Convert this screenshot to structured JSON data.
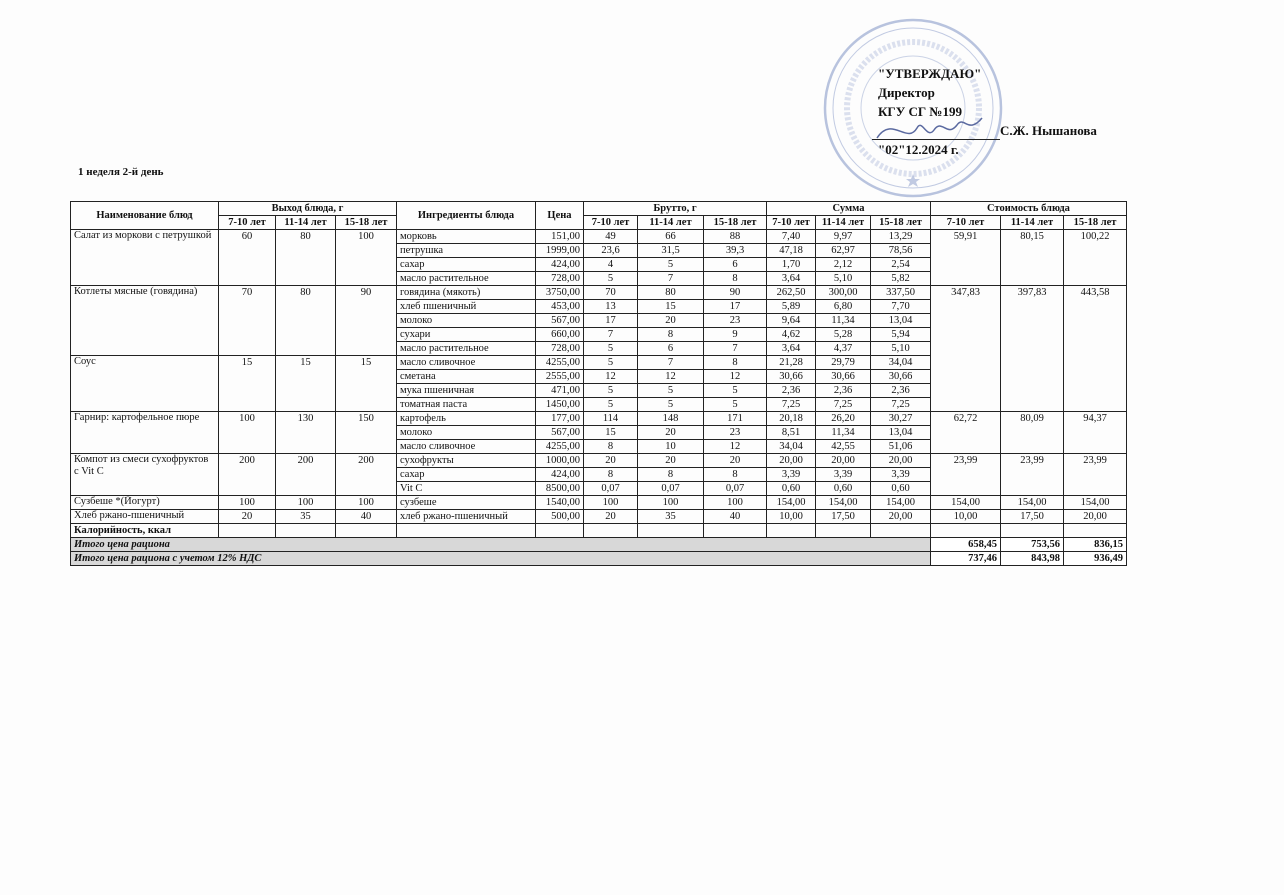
{
  "approval": {
    "title": "\"УТВЕРЖДАЮ\"",
    "position": "Директор",
    "org": "КГУ СГ №199",
    "name": "С.Ж. Нышанова",
    "date": "\"02\"12.2024 г."
  },
  "stamp": {
    "text": "АЛМАТЫ ҚАЛАСЫ БІЛІМ БАСҚАРМАСЫНЫҢ ШАРУАШЫЛЫҚ ЖҮРГІЗУ ҚҰҚЫҒЫНДАҒЫ №199 ГИМНАЗИЯ КОММУНАЛДЫҚ МЕМЛЕКЕТТІК МЕКЕМЕСІ",
    "color": "#8a9cc8"
  },
  "day_title": "1 неделя 2-й день",
  "headers": {
    "dish": "Наименование блюд",
    "yield": "Выход блюда, г",
    "ingredients": "Ингредиенты блюда",
    "price": "Цена",
    "brutto": "Брутто, г",
    "sum": "Сумма",
    "cost": "Стоимость блюда",
    "ages": [
      "7-10 лет",
      "11-14 лет",
      "15-18 лет"
    ]
  },
  "dishes": [
    {
      "name": "Салат из моркови с петрушкой",
      "yield": [
        "60",
        "80",
        "100"
      ],
      "cost": [
        "59,91",
        "80,15",
        "100,22"
      ],
      "ingredients": [
        {
          "name": "морковь",
          "price": "151,00",
          "brutto": [
            "49",
            "66",
            "88"
          ],
          "sum": [
            "7,40",
            "9,97",
            "13,29"
          ]
        },
        {
          "name": "петрушка",
          "price": "1999,00",
          "brutto": [
            "23,6",
            "31,5",
            "39,3"
          ],
          "sum": [
            "47,18",
            "62,97",
            "78,56"
          ]
        },
        {
          "name": "сахар",
          "price": "424,00",
          "brutto": [
            "4",
            "5",
            "6"
          ],
          "sum": [
            "1,70",
            "2,12",
            "2,54"
          ]
        },
        {
          "name": "масло растительное",
          "price": "728,00",
          "brutto": [
            "5",
            "7",
            "8"
          ],
          "sum": [
            "3,64",
            "5,10",
            "5,82"
          ]
        }
      ]
    },
    {
      "name": "Котлеты мясные (говядина)",
      "yield": [
        "70",
        "80",
        "90"
      ],
      "cost": [
        "347,83",
        "397,83",
        "443,58"
      ],
      "cost_rows": 9,
      "ingredients": [
        {
          "name": "говядина (мякоть)",
          "price": "3750,00",
          "brutto": [
            "70",
            "80",
            "90"
          ],
          "sum": [
            "262,50",
            "300,00",
            "337,50"
          ]
        },
        {
          "name": "хлеб пшеничный",
          "price": "453,00",
          "brutto": [
            "13",
            "15",
            "17"
          ],
          "sum": [
            "5,89",
            "6,80",
            "7,70"
          ]
        },
        {
          "name": "молоко",
          "price": "567,00",
          "brutto": [
            "17",
            "20",
            "23"
          ],
          "sum": [
            "9,64",
            "11,34",
            "13,04"
          ]
        },
        {
          "name": "сухари",
          "price": "660,00",
          "brutto": [
            "7",
            "8",
            "9"
          ],
          "sum": [
            "4,62",
            "5,28",
            "5,94"
          ]
        },
        {
          "name": "масло растительное",
          "price": "728,00",
          "brutto": [
            "5",
            "6",
            "7"
          ],
          "sum": [
            "3,64",
            "4,37",
            "5,10"
          ]
        }
      ]
    },
    {
      "name": "Соус",
      "yield": [
        "15",
        "15",
        "15"
      ],
      "cost": null,
      "ingredients": [
        {
          "name": "масло сливочное",
          "price": "4255,00",
          "brutto": [
            "5",
            "7",
            "8"
          ],
          "sum": [
            "21,28",
            "29,79",
            "34,04"
          ]
        },
        {
          "name": "сметана",
          "price": "2555,00",
          "brutto": [
            "12",
            "12",
            "12"
          ],
          "sum": [
            "30,66",
            "30,66",
            "30,66"
          ]
        },
        {
          "name": "мука пшеничная",
          "price": "471,00",
          "brutto": [
            "5",
            "5",
            "5"
          ],
          "sum": [
            "2,36",
            "2,36",
            "2,36"
          ]
        },
        {
          "name": "томатная паста",
          "price": "1450,00",
          "brutto": [
            "5",
            "5",
            "5"
          ],
          "sum": [
            "7,25",
            "7,25",
            "7,25"
          ]
        }
      ]
    },
    {
      "name": "Гарнир:  картофельное пюре",
      "yield": [
        "100",
        "130",
        "150"
      ],
      "cost": [
        "62,72",
        "80,09",
        "94,37"
      ],
      "ingredients": [
        {
          "name": "картофель",
          "price": "177,00",
          "brutto": [
            "114",
            "148",
            "171"
          ],
          "sum": [
            "20,18",
            "26,20",
            "30,27"
          ]
        },
        {
          "name": "молоко",
          "price": "567,00",
          "brutto": [
            "15",
            "20",
            "23"
          ],
          "sum": [
            "8,51",
            "11,34",
            "13,04"
          ]
        },
        {
          "name": "масло сливочное",
          "price": "4255,00",
          "brutto": [
            "8",
            "10",
            "12"
          ],
          "sum": [
            "34,04",
            "42,55",
            "51,06"
          ]
        }
      ]
    },
    {
      "name": "Компот из смеси сухофруктов с Vit C",
      "yield": [
        "200",
        "200",
        "200"
      ],
      "cost": [
        "23,99",
        "23,99",
        "23,99"
      ],
      "ingredients": [
        {
          "name": "сухофрукты",
          "price": "1000,00",
          "brutto": [
            "20",
            "20",
            "20"
          ],
          "sum": [
            "20,00",
            "20,00",
            "20,00"
          ]
        },
        {
          "name": "сахар",
          "price": "424,00",
          "brutto": [
            "8",
            "8",
            "8"
          ],
          "sum": [
            "3,39",
            "3,39",
            "3,39"
          ]
        },
        {
          "name": "Vit C",
          "price": "8500,00",
          "brutto": [
            "0,07",
            "0,07",
            "0,07"
          ],
          "sum": [
            "0,60",
            "0,60",
            "0,60"
          ]
        }
      ]
    },
    {
      "name": "Сузбеше *(Йогурт)",
      "yield": [
        "100",
        "100",
        "100"
      ],
      "cost": [
        "154,00",
        "154,00",
        "154,00"
      ],
      "ingredients": [
        {
          "name": "сузбеше",
          "price": "1540,00",
          "brutto": [
            "100",
            "100",
            "100"
          ],
          "sum": [
            "154,00",
            "154,00",
            "154,00"
          ]
        }
      ]
    },
    {
      "name": "Хлеб ржано-пшеничный",
      "yield": [
        "20",
        "35",
        "40"
      ],
      "cost": [
        "10,00",
        "17,50",
        "20,00"
      ],
      "ingredients": [
        {
          "name": "хлеб ржано-пшеничный",
          "price": "500,00",
          "brutto": [
            "20",
            "35",
            "40"
          ],
          "sum": [
            "10,00",
            "17,50",
            "20,00"
          ]
        }
      ]
    }
  ],
  "calories_label": "Калорийность, ккал",
  "totals": [
    {
      "label": "Итого цена рациона",
      "values": [
        "658,45",
        "753,56",
        "836,15"
      ]
    },
    {
      "label": "Итого цена рациона с учетом 12% НДС",
      "values": [
        "737,46",
        "843,98",
        "936,49"
      ]
    }
  ]
}
